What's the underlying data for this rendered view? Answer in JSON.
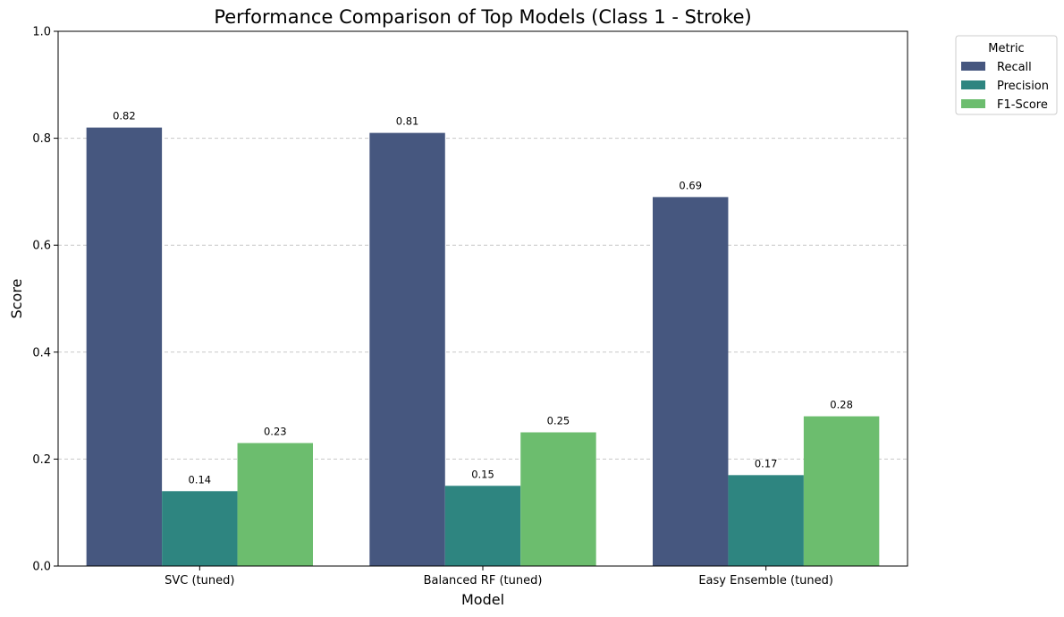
{
  "chart_data": {
    "type": "bar",
    "title": "Performance Comparison of Top Models (Class 1 - Stroke)",
    "xlabel": "Model",
    "ylabel": "Score",
    "ylim": [
      0,
      1.0
    ],
    "yticks": [
      0.0,
      0.2,
      0.4,
      0.6,
      0.8,
      1.0
    ],
    "ytick_labels": [
      "0.0",
      "0.2",
      "0.4",
      "0.6",
      "0.8",
      "1.0"
    ],
    "grid": "y-dashed",
    "categories": [
      "SVC (tuned)",
      "Balanced RF (tuned)",
      "Easy Ensemble (tuned)"
    ],
    "legend": {
      "title": "Metric",
      "placement": "outside-top-right"
    },
    "series": [
      {
        "name": "Recall",
        "color": "#46577f",
        "values": [
          0.82,
          0.81,
          0.69
        ],
        "labels": [
          "0.82",
          "0.81",
          "0.69"
        ]
      },
      {
        "name": "Precision",
        "color": "#2e8580",
        "values": [
          0.14,
          0.15,
          0.17
        ],
        "labels": [
          "0.14",
          "0.15",
          "0.17"
        ]
      },
      {
        "name": "F1-Score",
        "color": "#6cbd6e",
        "values": [
          0.23,
          0.25,
          0.28
        ],
        "labels": [
          "0.23",
          "0.25",
          "0.28"
        ]
      }
    ]
  }
}
